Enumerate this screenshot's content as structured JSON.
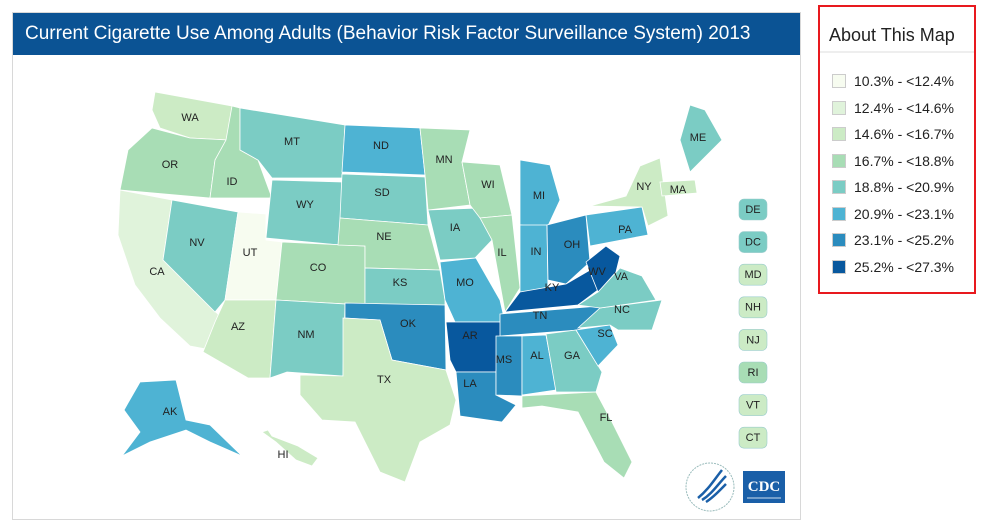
{
  "title": "Current Cigarette Use Among Adults (Behavior Risk Factor Surveillance System) 2013",
  "legend": {
    "title": "About This Map",
    "bins": [
      {
        "label": "10.3% - <12.4%",
        "color": "#f7fcf0"
      },
      {
        "label": "12.4% - <14.6%",
        "color": "#e0f3db"
      },
      {
        "label": "14.6% - <16.7%",
        "color": "#ccebc5"
      },
      {
        "label": "16.7% - <18.8%",
        "color": "#a8ddb5"
      },
      {
        "label": "18.8% - <20.9%",
        "color": "#7bccc4"
      },
      {
        "label": "20.9% - <23.1%",
        "color": "#4eb3d3"
      },
      {
        "label": "23.1% - <25.2%",
        "color": "#2b8cbe"
      },
      {
        "label": "25.2% - <27.3%",
        "color": "#08589e"
      }
    ]
  },
  "states": {
    "WA": 2,
    "OR": 3,
    "CA": 1,
    "NV": 4,
    "ID": 3,
    "MT": 4,
    "WY": 4,
    "UT": 0,
    "CO": 3,
    "AZ": 2,
    "NM": 4,
    "ND": 5,
    "SD": 4,
    "NE": 3,
    "KS": 4,
    "OK": 6,
    "TX": 2,
    "MN": 3,
    "IA": 4,
    "MO": 5,
    "AR": 7,
    "LA": 6,
    "WI": 3,
    "IL": 3,
    "MI": 5,
    "IN": 5,
    "OH": 6,
    "KY": 7,
    "TN": 6,
    "MS": 6,
    "AL": 5,
    "GA": 4,
    "FL": 3,
    "SC": 5,
    "NC": 4,
    "VA": 4,
    "WV": 7,
    "PA": 5,
    "NY": 2,
    "ME": 4,
    "MA": 2,
    "AK": 5,
    "HI": 2
  },
  "small_states": [
    {
      "abbr": "DE",
      "bin": 4
    },
    {
      "abbr": "DC",
      "bin": 4
    },
    {
      "abbr": "MD",
      "bin": 2
    },
    {
      "abbr": "NH",
      "bin": 2
    },
    {
      "abbr": "NJ",
      "bin": 2
    },
    {
      "abbr": "RI",
      "bin": 3
    },
    {
      "abbr": "VT",
      "bin": 2
    },
    {
      "abbr": "CT",
      "bin": 2
    }
  ],
  "logos": {
    "hhs": "Department of Health & Human Services USA",
    "cdc": "CDC"
  }
}
